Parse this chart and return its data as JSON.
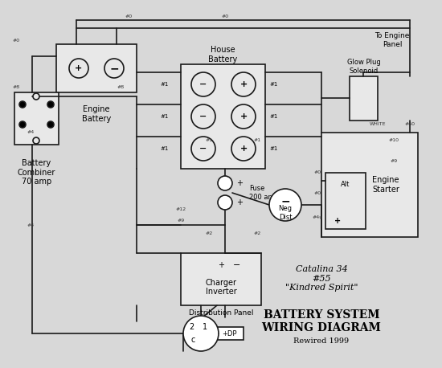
{
  "bg_color": "#d8d8d8",
  "line_color": "#1a1a1a",
  "title": "BATTERY SYSTEM\nWIRING DIAGRAM",
  "subtitle": "Rewired 1999",
  "boat_name": "Catalina 34\n#55\n\"Kindred Spirit\"",
  "labels": {
    "engine_battery": "Engine\nBattery",
    "house_battery": "House\nBattery",
    "battery_combiner": "Battery\nCombiner\n70 amp",
    "fuse": "Fuse\n200 amp",
    "neg_dist": "Neg\nDist",
    "charger_inverter": "Charger\nInverter",
    "distribution_panel": "Distribution Panel",
    "alt": "Alt",
    "engine_starter": "Engine\nStarter",
    "glow_plug": "Glow Plug\nSolenoid",
    "to_engine_panel": "To Engine\nPanel"
  }
}
